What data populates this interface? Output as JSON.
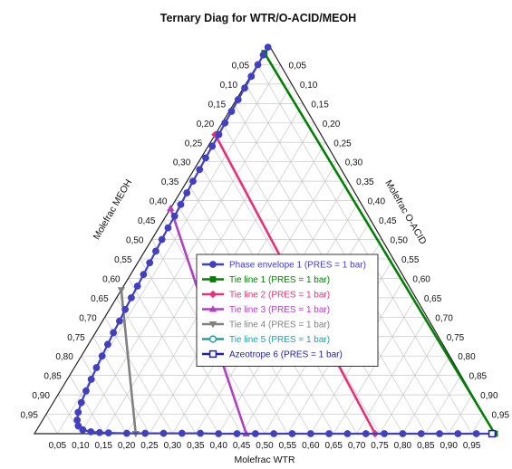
{
  "chart_data": {
    "type": "ternary",
    "title": "Ternary Diag for WTR/O-ACID/MEOH",
    "axes": {
      "bottom": {
        "label": "Molefrac WTR",
        "component": "WTR"
      },
      "right": {
        "label": "Molefrac O-ACID",
        "component": "O-ACID"
      },
      "left": {
        "label": "Molefrac MEOH",
        "component": "MEOH"
      }
    },
    "ticks": {
      "bottom": [
        "0,05",
        "0,10",
        "0,15",
        "0,20",
        "0,25",
        "0,30",
        "0,35",
        "0,40",
        "0,45",
        "0,50",
        "0,55",
        "0,60",
        "0,65",
        "0,70",
        "0,75",
        "0,80",
        "0,85",
        "0,90",
        "0,95"
      ],
      "right": [
        "0,95",
        "0,90",
        "0,85",
        "0,80",
        "0,75",
        "0,70",
        "0,65",
        "0,60",
        "0,55",
        "0,50",
        "0,45",
        "0,40",
        "0,35",
        "0,30",
        "0,25",
        "0,20",
        "0,15",
        "0,10",
        "0,05"
      ],
      "left": [
        "0,05",
        "0,10",
        "0,15",
        "0,20",
        "0,25",
        "0,30",
        "0,35",
        "0,40",
        "0,45",
        "0,50",
        "0,55",
        "0,60",
        "0,65",
        "0,70",
        "0,75",
        "0,80",
        "0,85",
        "0,90",
        "0,95"
      ]
    },
    "grid": true,
    "legend_position": "center-right",
    "series": [
      {
        "name": "Phase envelope 1 (PRES = 1  bar)",
        "color": "#4040c0",
        "marker": "circle",
        "points": [
          {
            "wtr": 0.0,
            "macid": 0.995
          },
          {
            "wtr": 0.0,
            "macid": 0.975
          },
          {
            "wtr": 0.001,
            "macid": 0.95
          },
          {
            "wtr": 0.002,
            "macid": 0.92
          },
          {
            "wtr": 0.003,
            "macid": 0.89
          },
          {
            "wtr": 0.004,
            "macid": 0.86
          },
          {
            "wtr": 0.005,
            "macid": 0.83
          },
          {
            "wtr": 0.006,
            "macid": 0.8
          },
          {
            "wtr": 0.008,
            "macid": 0.77
          },
          {
            "wtr": 0.009,
            "macid": 0.74
          },
          {
            "wtr": 0.01,
            "macid": 0.71
          },
          {
            "wtr": 0.012,
            "macid": 0.68
          },
          {
            "wtr": 0.013,
            "macid": 0.65
          },
          {
            "wtr": 0.015,
            "macid": 0.62
          },
          {
            "wtr": 0.017,
            "macid": 0.59
          },
          {
            "wtr": 0.019,
            "macid": 0.56
          },
          {
            "wtr": 0.02,
            "macid": 0.53
          },
          {
            "wtr": 0.022,
            "macid": 0.5
          },
          {
            "wtr": 0.024,
            "macid": 0.47
          },
          {
            "wtr": 0.026,
            "macid": 0.44
          },
          {
            "wtr": 0.028,
            "macid": 0.41
          },
          {
            "wtr": 0.03,
            "macid": 0.38
          },
          {
            "wtr": 0.032,
            "macid": 0.35
          },
          {
            "wtr": 0.034,
            "macid": 0.32
          },
          {
            "wtr": 0.037,
            "macid": 0.29
          },
          {
            "wtr": 0.039,
            "macid": 0.26
          },
          {
            "wtr": 0.042,
            "macid": 0.23
          },
          {
            "wtr": 0.045,
            "macid": 0.2
          },
          {
            "wtr": 0.048,
            "macid": 0.17
          },
          {
            "wtr": 0.052,
            "macid": 0.14
          },
          {
            "wtr": 0.056,
            "macid": 0.11
          },
          {
            "wtr": 0.061,
            "macid": 0.08
          },
          {
            "wtr": 0.067,
            "macid": 0.055
          },
          {
            "wtr": 0.075,
            "macid": 0.035
          },
          {
            "wtr": 0.085,
            "macid": 0.02
          },
          {
            "wtr": 0.1,
            "macid": 0.01
          },
          {
            "wtr": 0.12,
            "macid": 0.005
          },
          {
            "wtr": 0.14,
            "macid": 0.003
          },
          {
            "wtr": 0.16,
            "macid": 0.002
          },
          {
            "wtr": 0.2,
            "macid": 0.001
          },
          {
            "wtr": 0.24,
            "macid": 0.001
          },
          {
            "wtr": 0.28,
            "macid": 0.001
          },
          {
            "wtr": 0.32,
            "macid": 0.001
          },
          {
            "wtr": 0.36,
            "macid": 0.001
          },
          {
            "wtr": 0.4,
            "macid": 0.0
          },
          {
            "wtr": 0.44,
            "macid": 0.0
          },
          {
            "wtr": 0.48,
            "macid": 0.0
          },
          {
            "wtr": 0.52,
            "macid": 0.0
          },
          {
            "wtr": 0.56,
            "macid": 0.0
          },
          {
            "wtr": 0.6,
            "macid": 0.0
          },
          {
            "wtr": 0.64,
            "macid": 0.0
          },
          {
            "wtr": 0.68,
            "macid": 0.0
          },
          {
            "wtr": 0.72,
            "macid": 0.0
          },
          {
            "wtr": 0.76,
            "macid": 0.0
          },
          {
            "wtr": 0.8,
            "macid": 0.0
          },
          {
            "wtr": 0.84,
            "macid": 0.0
          },
          {
            "wtr": 0.88,
            "macid": 0.0
          },
          {
            "wtr": 0.92,
            "macid": 0.0
          },
          {
            "wtr": 0.96,
            "macid": 0.0
          },
          {
            "wtr": 0.995,
            "macid": 0.0
          }
        ]
      },
      {
        "name": "Tie line 1 (PRES = 1  bar)",
        "color": "#008000",
        "marker": "square",
        "points": [
          {
            "wtr": 0.0,
            "macid": 0.98
          },
          {
            "wtr": 1.0,
            "macid": 0.0
          }
        ]
      },
      {
        "name": "Tie line 2 (PRES = 1  bar)",
        "color": "#e8307a",
        "marker": "diamond",
        "points": [
          {
            "wtr": 0.0,
            "macid": 0.77
          },
          {
            "wtr": 0.74,
            "macid": 0.0
          }
        ]
      },
      {
        "name": "Tie line 3 (PRES = 1  bar)",
        "color": "#b040c0",
        "marker": "triangle",
        "points": [
          {
            "wtr": 0.0,
            "macid": 0.58
          },
          {
            "wtr": 0.46,
            "macid": 0.0
          }
        ]
      },
      {
        "name": "Tie line 4 (PRES = 1  bar)",
        "color": "#808080",
        "marker": "triangle-down",
        "points": [
          {
            "wtr": 0.0,
            "macid": 0.37
          },
          {
            "wtr": 0.22,
            "macid": 0.0
          }
        ]
      },
      {
        "name": "Tie line 5 (PRES = 1  bar)",
        "color": "#20a0a0",
        "marker": "circle-open",
        "points": []
      },
      {
        "name": "Azeotrope 6 (PRES = 1  bar)",
        "color": "#2020a0",
        "marker": "square-open",
        "points": [
          {
            "wtr": 1.0,
            "macid": 0.0
          }
        ]
      }
    ]
  }
}
